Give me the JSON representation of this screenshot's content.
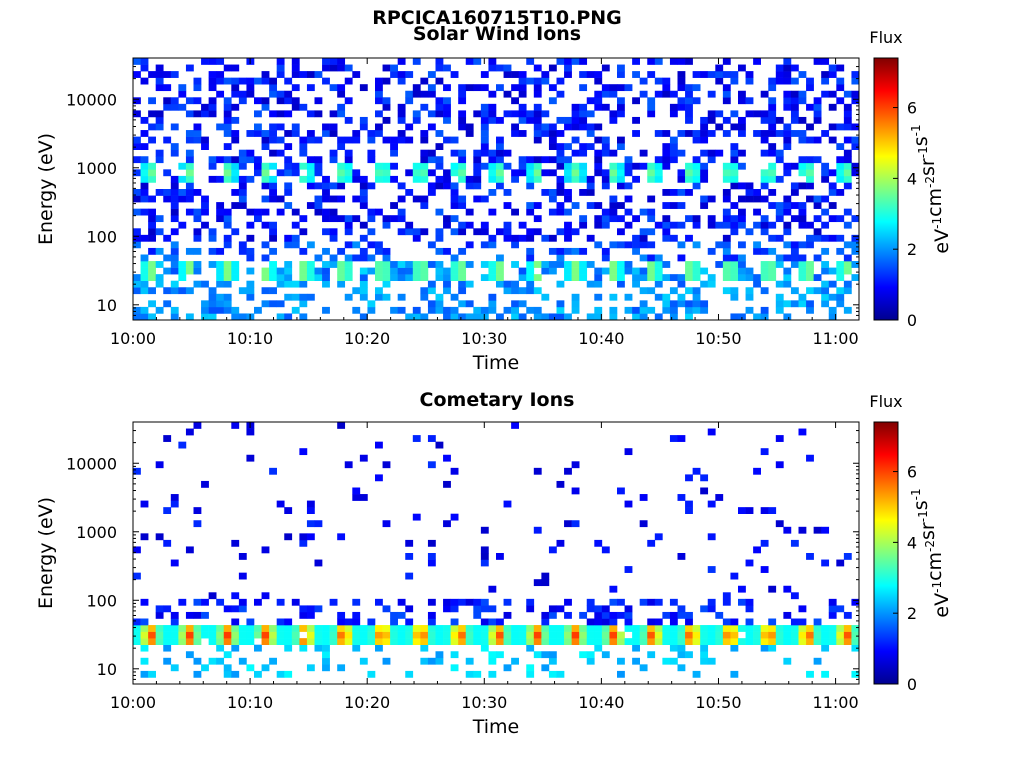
{
  "figure_title": "RPCICA160715T10.PNG",
  "chart_data": [
    {
      "type": "heatmap",
      "title": "Solar Wind Ions",
      "xlabel": "Time",
      "ylabel": "Energy (eV)",
      "x_ticks": [
        "10:00",
        "10:10",
        "10:20",
        "10:30",
        "10:40",
        "10:50",
        "11:00"
      ],
      "y_ticks": [
        "10",
        "100",
        "1000",
        "10000"
      ],
      "y_scale": "log",
      "ylim": [
        6,
        40000
      ],
      "xlim": [
        "10:00",
        "11:02"
      ],
      "colorbar": {
        "title": "Flux",
        "label": "eV-1cm-2sr-1s-1",
        "ticks": [
          "0",
          "2",
          "4",
          "6"
        ],
        "range": [
          0,
          7.4
        ]
      },
      "pattern": "sparse blue flux (0-2) across all energies; periodic bursts ~2.5-4 near 700-1000 eV and ~2.5-4 near 25-35 eV every ~3.3 min",
      "bands": [
        {
          "energy_eV": 850,
          "value": 3.3,
          "period_min": 3.3
        },
        {
          "energy_eV": 30,
          "value": 3.2,
          "period_min": 3.3
        }
      ]
    },
    {
      "type": "heatmap",
      "title": "Cometary Ions",
      "xlabel": "Time",
      "ylabel": "Energy (eV)",
      "x_ticks": [
        "10:00",
        "10:10",
        "10:20",
        "10:30",
        "10:40",
        "10:50",
        "11:00"
      ],
      "y_ticks": [
        "10",
        "100",
        "1000",
        "10000"
      ],
      "y_scale": "log",
      "ylim": [
        6,
        40000
      ],
      "xlim": [
        "10:00",
        "11:02"
      ],
      "colorbar": {
        "title": "Flux",
        "label": "eV-1cm-2sr-1s-1",
        "ticks": [
          "0",
          "2",
          "4",
          "6"
        ],
        "range": [
          0,
          7.4
        ]
      },
      "pattern": "sparse low flux above 100 eV; strong periodic band at 20-40 eV peaking ~6 every ~3.3 min",
      "bands": [
        {
          "energy_eV": 30,
          "value": 6.0,
          "period_min": 3.3
        }
      ]
    }
  ]
}
